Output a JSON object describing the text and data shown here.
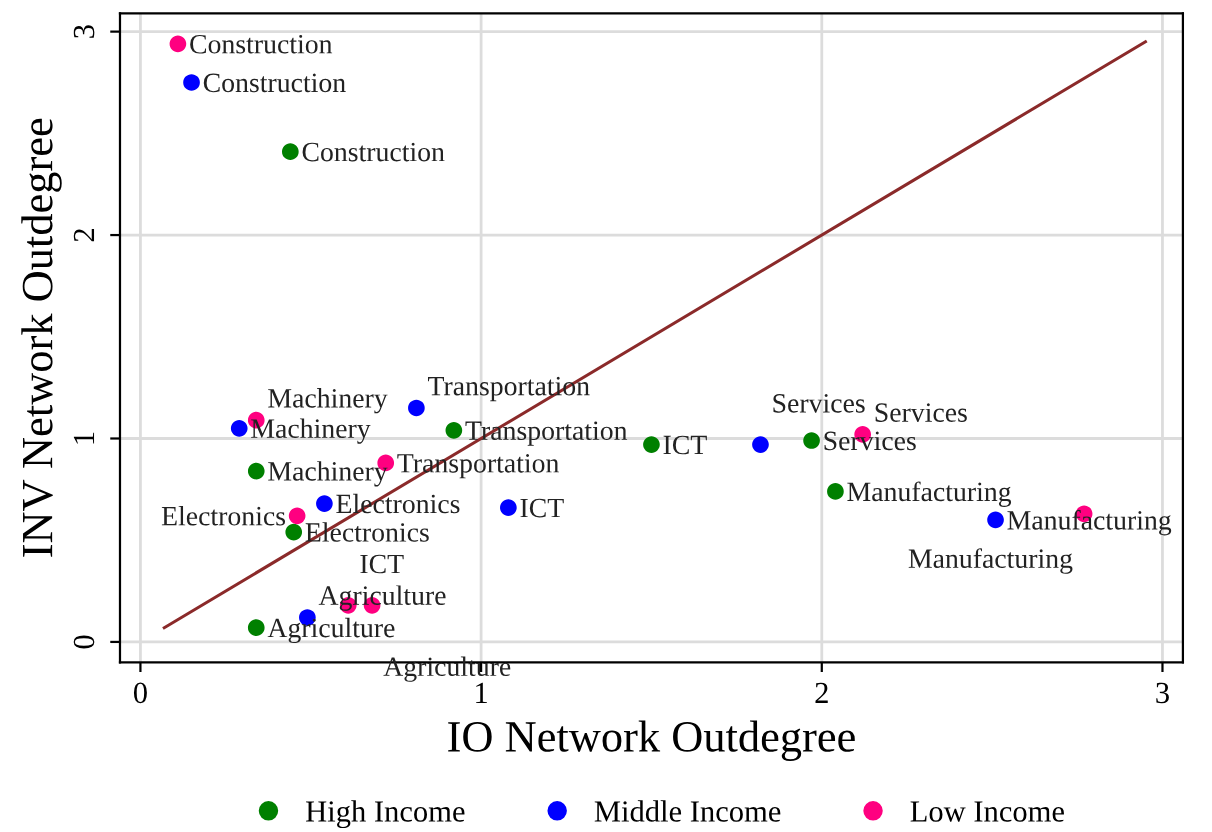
{
  "chart_data": {
    "type": "scatter",
    "xlabel": "IO Network Outdegree",
    "ylabel": "INV Network Outdegree",
    "xlim": [
      -0.06,
      3.06
    ],
    "ylim": [
      -0.1,
      3.09
    ],
    "xticks": [
      0,
      1,
      2,
      3
    ],
    "yticks": [
      0,
      1,
      2,
      3
    ],
    "grid": true,
    "legend": "bottom",
    "marker": "circle",
    "series": [
      {
        "name": "High Income",
        "color": "#008000",
        "x": [
          0.44,
          0.92,
          1.5,
          1.97,
          2.04,
          0.34,
          0.45,
          0.34
        ],
        "values": [
          2.41,
          1.04,
          0.97,
          0.99,
          0.74,
          0.84,
          0.54,
          0.07
        ],
        "value_labels": [
          "Construction",
          "Transportation",
          "ICT",
          "Services",
          "Manufacturing",
          "Machinery",
          "Electronics",
          "Agriculture"
        ]
      },
      {
        "name": "Middle Income",
        "color": "#0000ff",
        "x": [
          0.15,
          0.81,
          0.29,
          0.54,
          1.08,
          1.82,
          2.51,
          0.49
        ],
        "values": [
          2.75,
          1.15,
          1.05,
          0.68,
          0.66,
          0.97,
          0.6,
          0.12
        ],
        "value_labels": [
          "Construction",
          "Transportation",
          "Machinery",
          "Electronics",
          "ICT",
          "Services",
          "Manufacturing",
          "Agriculture"
        ]
      },
      {
        "name": "Low Income",
        "color": "#ff0080",
        "x": [
          0.11,
          0.34,
          0.72,
          0.46,
          0.61,
          0.68,
          2.12,
          2.77
        ],
        "values": [
          2.94,
          1.09,
          0.88,
          0.62,
          0.18,
          0.18,
          1.02,
          0.63
        ],
        "value_labels": [
          "Construction",
          "Machinery",
          "Transportation",
          "Electronics",
          "ICT",
          "Agriculture",
          "Services",
          "Manufacturing"
        ]
      },
      {
        "type": "line",
        "color": "#8b2a2a",
        "x": [
          0.07,
          2.95
        ],
        "values": [
          0.07,
          2.95
        ],
        "marker": "none"
      }
    ]
  }
}
